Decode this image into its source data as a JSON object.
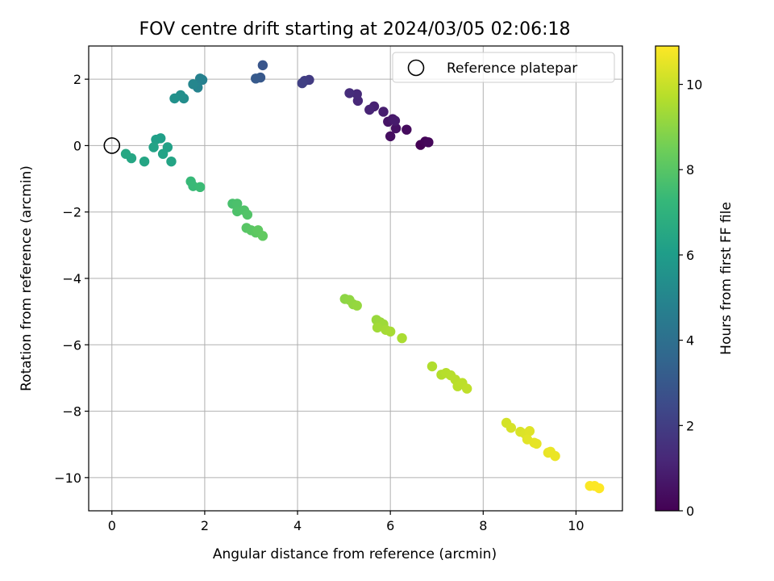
{
  "chart_data": {
    "type": "scatter",
    "title": "FOV centre drift starting at 2024/03/05 02:06:18",
    "xlabel": "Angular distance from reference (arcmin)",
    "ylabel": "Rotation from reference (arcmin)",
    "xlim": [
      -0.5,
      11.0
    ],
    "ylim": [
      -11.0,
      3.0
    ],
    "xticks": [
      0,
      2,
      4,
      6,
      8,
      10
    ],
    "yticks": [
      2,
      0,
      -2,
      -4,
      -6,
      -8,
      -10
    ],
    "ytick_labels": [
      "2",
      "0",
      "−2",
      "−4",
      "−6",
      "−8",
      "−10"
    ],
    "grid": true,
    "legend": {
      "placement": "top-right",
      "entries": [
        "Reference platepar"
      ]
    },
    "reference_point": {
      "x": 0,
      "y": 0,
      "marker": "open circle"
    },
    "colorbar": {
      "label": "Hours from first FF file",
      "range": [
        0,
        10.9
      ],
      "ticks": [
        0,
        2,
        4,
        6,
        8,
        10
      ],
      "colormap": "viridis",
      "colors": [
        "#440154",
        "#482878",
        "#3e4989",
        "#31688e",
        "#26828e",
        "#1f9e89",
        "#35b779",
        "#6ece58",
        "#b5de2b",
        "#fde725"
      ]
    },
    "series": [
      {
        "points": [
          [
            6.65,
            0.02,
            0.0
          ],
          [
            6.75,
            0.12,
            0.1
          ],
          [
            6.82,
            0.1,
            0.2
          ],
          [
            6.35,
            0.48,
            0.3
          ],
          [
            6.0,
            0.28,
            0.4
          ],
          [
            6.12,
            0.52,
            0.5
          ],
          [
            5.95,
            0.72,
            0.6
          ],
          [
            6.05,
            0.8,
            0.7
          ],
          [
            6.1,
            0.75,
            0.8
          ],
          [
            5.85,
            1.02,
            0.9
          ],
          [
            5.65,
            1.18,
            1.0
          ],
          [
            5.55,
            1.08,
            1.1
          ],
          [
            5.3,
            1.35,
            1.2
          ],
          [
            5.28,
            1.55,
            1.3
          ],
          [
            5.12,
            1.58,
            1.4
          ],
          [
            4.25,
            1.98,
            1.9
          ],
          [
            4.15,
            1.95,
            2.0
          ],
          [
            4.1,
            1.88,
            2.1
          ],
          [
            3.25,
            2.42,
            2.9
          ],
          [
            3.2,
            2.05,
            3.0
          ],
          [
            3.1,
            2.02,
            3.1
          ],
          [
            1.95,
            1.98,
            4.7
          ],
          [
            1.9,
            2.02,
            4.8
          ],
          [
            1.85,
            1.75,
            4.9
          ],
          [
            1.75,
            1.85,
            5.0
          ],
          [
            1.55,
            1.42,
            5.3
          ],
          [
            1.48,
            1.52,
            5.4
          ],
          [
            1.35,
            1.42,
            5.5
          ],
          [
            1.05,
            0.22,
            6.1
          ],
          [
            0.95,
            0.18,
            6.15
          ],
          [
            1.2,
            -0.05,
            6.2
          ],
          [
            0.9,
            -0.05,
            6.25
          ],
          [
            1.1,
            -0.25,
            6.3
          ],
          [
            1.28,
            -0.48,
            6.35
          ],
          [
            0.7,
            -0.48,
            6.4
          ],
          [
            0.42,
            -0.38,
            6.45
          ],
          [
            0.3,
            -0.25,
            6.5
          ],
          [
            1.7,
            -1.08,
            7.3
          ],
          [
            1.75,
            -1.22,
            7.35
          ],
          [
            1.9,
            -1.25,
            7.4
          ],
          [
            2.6,
            -1.75,
            7.7
          ],
          [
            2.7,
            -1.75,
            7.75
          ],
          [
            2.7,
            -1.98,
            7.8
          ],
          [
            2.85,
            -1.95,
            7.85
          ],
          [
            2.92,
            -2.08,
            7.9
          ],
          [
            2.9,
            -2.48,
            8.0
          ],
          [
            3.0,
            -2.55,
            8.05
          ],
          [
            3.1,
            -2.62,
            8.1
          ],
          [
            3.15,
            -2.55,
            8.15
          ],
          [
            3.25,
            -2.72,
            8.2
          ],
          [
            5.02,
            -4.62,
            9.0
          ],
          [
            5.12,
            -4.65,
            9.05
          ],
          [
            5.2,
            -4.78,
            9.1
          ],
          [
            5.28,
            -4.82,
            9.15
          ],
          [
            5.7,
            -5.25,
            9.2
          ],
          [
            5.78,
            -5.32,
            9.25
          ],
          [
            5.85,
            -5.38,
            9.3
          ],
          [
            5.72,
            -5.48,
            9.35
          ],
          [
            5.9,
            -5.55,
            9.4
          ],
          [
            6.0,
            -5.6,
            9.45
          ],
          [
            6.25,
            -5.8,
            9.5
          ],
          [
            6.9,
            -6.65,
            9.6
          ],
          [
            7.1,
            -6.9,
            9.65
          ],
          [
            7.2,
            -6.85,
            9.7
          ],
          [
            7.3,
            -6.92,
            9.72
          ],
          [
            7.4,
            -7.05,
            9.75
          ],
          [
            7.45,
            -7.25,
            9.78
          ],
          [
            7.55,
            -7.15,
            9.8
          ],
          [
            7.65,
            -7.32,
            9.85
          ],
          [
            8.5,
            -8.35,
            10.2
          ],
          [
            8.6,
            -8.5,
            10.25
          ],
          [
            8.8,
            -8.62,
            10.3
          ],
          [
            8.9,
            -8.68,
            10.35
          ],
          [
            9.0,
            -8.6,
            10.4
          ],
          [
            8.95,
            -8.85,
            10.45
          ],
          [
            9.1,
            -8.95,
            10.5
          ],
          [
            9.15,
            -8.98,
            10.52
          ],
          [
            9.4,
            -9.25,
            10.55
          ],
          [
            9.45,
            -9.22,
            10.58
          ],
          [
            9.55,
            -9.35,
            10.6
          ],
          [
            10.3,
            -10.25,
            10.85
          ],
          [
            10.4,
            -10.25,
            10.88
          ],
          [
            10.5,
            -10.32,
            10.9
          ]
        ]
      }
    ]
  }
}
